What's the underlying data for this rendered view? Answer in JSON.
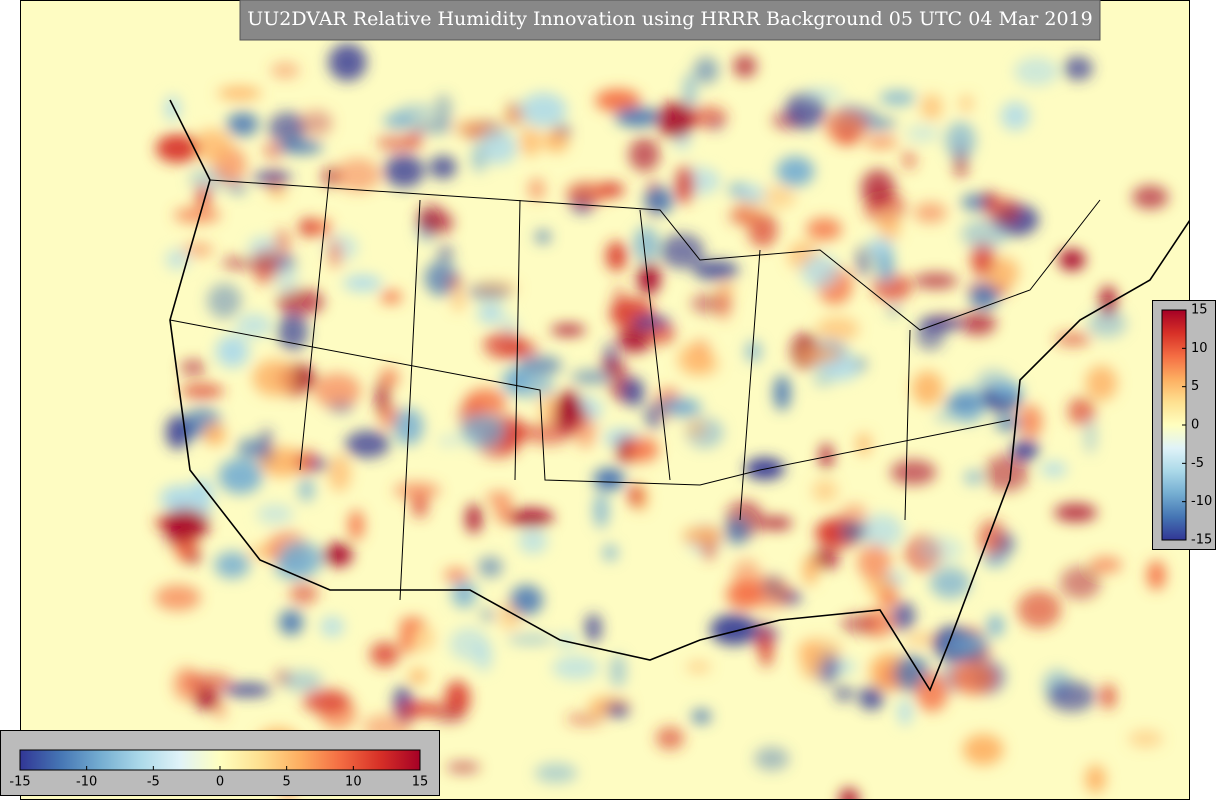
{
  "title": "UU2DVAR Relative Humidity Innovation using HRRR Background 05 UTC 04 Mar 2019",
  "horizontal_colorbar": {
    "range": [
      -15,
      15
    ],
    "ticks": [
      -15,
      -10,
      -5,
      0,
      5,
      10,
      15
    ]
  },
  "vertical_colorbar": {
    "range": [
      -15,
      15
    ],
    "ticks": [
      15,
      10,
      5,
      0,
      -5,
      -10,
      -15
    ]
  }
}
